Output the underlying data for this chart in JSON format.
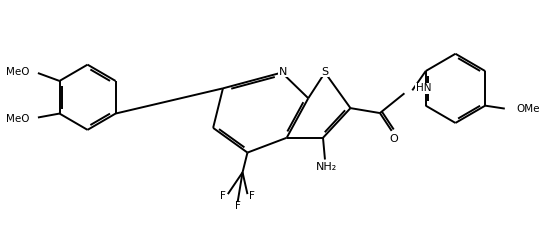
{
  "figsize": [
    5.52,
    2.37
  ],
  "dpi": 100,
  "bg": "#ffffff",
  "lc": "#000000",
  "lw": 1.4,
  "font_size": 7.5,
  "xlim": [
    0,
    552
  ],
  "ylim": [
    0,
    237
  ]
}
